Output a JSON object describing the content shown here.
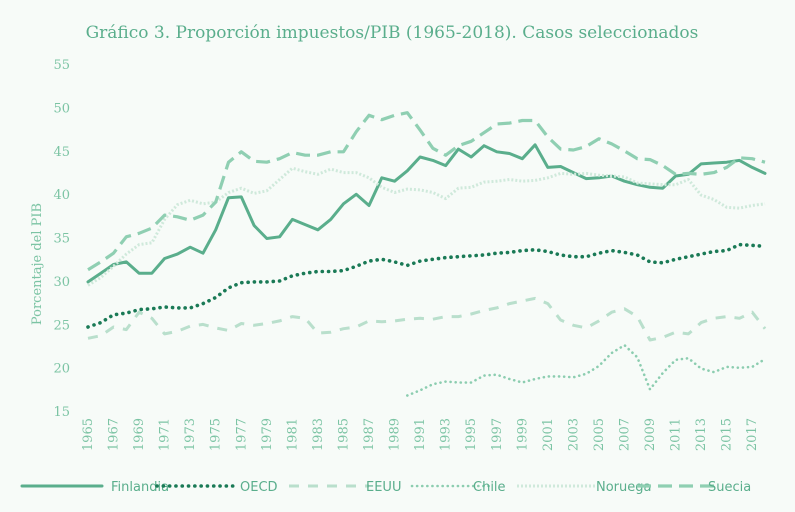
{
  "chart_data": {
    "type": "line",
    "title": "Gráfico 3. Proporción impuestos/PIB (1965-2018). Casos seleccionados",
    "ylabel": "Porcentaje del PIB",
    "xlabel": "",
    "ylim": [
      15,
      55
    ],
    "yticks": [
      "15",
      "20",
      "25",
      "30",
      "35",
      "40",
      "45",
      "50",
      "55"
    ],
    "xticks": [
      "1965",
      "1967",
      "1969",
      "1971",
      "1973",
      "1975",
      "1977",
      "1979",
      "1981",
      "1983",
      "1985",
      "1987",
      "1989",
      "1991",
      "1993",
      "1995",
      "1997",
      "1999",
      "2001",
      "2003",
      "2005",
      "2007",
      "2009",
      "2011",
      "2013",
      "2015",
      "2017"
    ],
    "x_start": 1965,
    "x_end": 2018,
    "legend_position": "bottom",
    "grid": false,
    "series": [
      {
        "name": "Finlandia",
        "color": "#5aae8c",
        "style": "solid",
        "x": [
          1965,
          1966,
          1967,
          1968,
          1969,
          1970,
          1971,
          1972,
          1973,
          1974,
          1975,
          1976,
          1977,
          1978,
          1979,
          1980,
          1981,
          1982,
          1983,
          1984,
          1985,
          1986,
          1987,
          1988,
          1989,
          1990,
          1991,
          1992,
          1993,
          1994,
          1995,
          1996,
          1997,
          1998,
          1999,
          2000,
          2001,
          2002,
          2003,
          2004,
          2005,
          2006,
          2007,
          2008,
          2009,
          2010,
          2011,
          2012,
          2013,
          2014,
          2015,
          2016,
          2017,
          2018
        ],
        "values": [
          30,
          31,
          32,
          32.3,
          31,
          31,
          32.7,
          33.2,
          34,
          33.3,
          36,
          39.7,
          39.8,
          36.5,
          35,
          35.2,
          37.2,
          36.6,
          36,
          37.2,
          39,
          40.1,
          38.8,
          42,
          41.6,
          42.8,
          44.4,
          44,
          43.4,
          45.3,
          44.4,
          45.7,
          45,
          44.8,
          44.2,
          45.8,
          43.2,
          43.3,
          42.6,
          41.9,
          42,
          42.2,
          41.6,
          41.2,
          40.9,
          40.8,
          42.2,
          42.4,
          43.6,
          43.7,
          43.8,
          44,
          43.2,
          42.5
        ]
      },
      {
        "name": "OECD",
        "color": "#1a7a56",
        "style": "dotted",
        "x": [
          1965,
          1966,
          1967,
          1968,
          1969,
          1970,
          1971,
          1972,
          1973,
          1974,
          1975,
          1976,
          1977,
          1978,
          1979,
          1980,
          1981,
          1982,
          1983,
          1984,
          1985,
          1986,
          1987,
          1988,
          1989,
          1990,
          1991,
          1992,
          1993,
          1994,
          1995,
          1996,
          1997,
          1998,
          1999,
          2000,
          2001,
          2002,
          2003,
          2004,
          2005,
          2006,
          2007,
          2008,
          2009,
          2010,
          2011,
          2012,
          2013,
          2014,
          2015,
          2016,
          2017,
          2018
        ],
        "values": [
          24.8,
          25.3,
          26.2,
          26.4,
          26.8,
          26.9,
          27.1,
          27,
          27,
          27.5,
          28.2,
          29.3,
          29.9,
          30,
          30,
          30.1,
          30.7,
          31,
          31.2,
          31.2,
          31.3,
          31.8,
          32.4,
          32.6,
          32.3,
          31.9,
          32.4,
          32.6,
          32.8,
          32.9,
          33,
          33.1,
          33.3,
          33.4,
          33.6,
          33.7,
          33.5,
          33.1,
          32.9,
          32.9,
          33.3,
          33.6,
          33.4,
          33.1,
          32.3,
          32.2,
          32.6,
          32.9,
          33.2,
          33.5,
          33.6,
          34.3,
          34.2,
          34.1
        ]
      },
      {
        "name": "EEUU",
        "color": "#b9dfcc",
        "style": "dash",
        "x": [
          1965,
          1966,
          1967,
          1968,
          1969,
          1970,
          1971,
          1972,
          1973,
          1974,
          1975,
          1976,
          1977,
          1978,
          1979,
          1980,
          1981,
          1982,
          1983,
          1984,
          1985,
          1986,
          1987,
          1988,
          1989,
          1990,
          1991,
          1992,
          1993,
          1994,
          1995,
          1996,
          1997,
          1998,
          1999,
          2000,
          2001,
          2002,
          2003,
          2004,
          2005,
          2006,
          2007,
          2008,
          2009,
          2010,
          2011,
          2012,
          2013,
          2014,
          2015,
          2016,
          2017,
          2018
        ],
        "values": [
          23.5,
          23.8,
          24.8,
          24.5,
          26.5,
          25.8,
          24,
          24.3,
          24.9,
          25.1,
          24.7,
          24.4,
          25.2,
          25,
          25.2,
          25.5,
          26,
          25.8,
          24.1,
          24.2,
          24.6,
          24.8,
          25.5,
          25.4,
          25.5,
          25.7,
          25.8,
          25.7,
          26,
          26,
          26.3,
          26.7,
          27,
          27.5,
          27.8,
          28.1,
          27.5,
          25.6,
          25,
          24.7,
          25.5,
          26.5,
          26.9,
          26,
          23.3,
          23.6,
          24.2,
          24,
          25.3,
          25.8,
          26,
          25.8,
          26.5,
          24.6
        ]
      },
      {
        "name": "Chile",
        "color": "#8ccdb0",
        "style": "smalldot",
        "x": [
          1990,
          1991,
          1992,
          1993,
          1994,
          1995,
          1996,
          1997,
          1998,
          1999,
          2000,
          2001,
          2002,
          2003,
          2004,
          2005,
          2006,
          2007,
          2008,
          2009,
          2010,
          2011,
          2012,
          2013,
          2014,
          2015,
          2016,
          2017,
          2018
        ],
        "values": [
          16.9,
          17.5,
          18.2,
          18.5,
          18.4,
          18.4,
          19.2,
          19.3,
          18.8,
          18.4,
          18.8,
          19.1,
          19.1,
          19,
          19.4,
          20.3,
          21.8,
          22.7,
          21.3,
          17.6,
          19.5,
          21,
          21.2,
          20,
          19.6,
          20.2,
          20.1,
          20.2,
          21.1
        ]
      },
      {
        "name": "Noruega",
        "color": "#cfe9db",
        "style": "dense",
        "x": [
          1965,
          1966,
          1967,
          1968,
          1969,
          1970,
          1971,
          1972,
          1973,
          1974,
          1975,
          1976,
          1977,
          1978,
          1979,
          1980,
          1981,
          1982,
          1983,
          1984,
          1985,
          1986,
          1987,
          1988,
          1989,
          1990,
          1991,
          1992,
          1993,
          1994,
          1995,
          1996,
          1997,
          1998,
          1999,
          2000,
          2001,
          2002,
          2003,
          2004,
          2005,
          2006,
          2007,
          2008,
          2009,
          2010,
          2011,
          2012,
          2013,
          2014,
          2015,
          2016,
          2017,
          2018
        ],
        "values": [
          29.6,
          30.5,
          31.8,
          33.2,
          34.3,
          34.5,
          37.2,
          38.9,
          39.4,
          39,
          39.2,
          40.3,
          40.8,
          40.2,
          40.5,
          41.8,
          43.1,
          42.7,
          42.4,
          43,
          42.6,
          42.6,
          42,
          40.9,
          40.3,
          40.7,
          40.6,
          40.3,
          39.6,
          40.8,
          40.9,
          41.5,
          41.6,
          41.8,
          41.6,
          41.7,
          42,
          42.5,
          42.4,
          42.5,
          42.3,
          42.2,
          42.1,
          41.4,
          41.3,
          41.2,
          41.2,
          41.8,
          40,
          39.5,
          38.6,
          38.5,
          38.8,
          39
        ]
      },
      {
        "name": "Suecia",
        "color": "#8fcfb2",
        "style": "longdash",
        "x": [
          1965,
          1966,
          1967,
          1968,
          1969,
          1970,
          1971,
          1972,
          1973,
          1974,
          1975,
          1976,
          1977,
          1978,
          1979,
          1980,
          1981,
          1982,
          1983,
          1984,
          1985,
          1986,
          1987,
          1988,
          1989,
          1990,
          1991,
          1992,
          1993,
          1994,
          1995,
          1996,
          1997,
          1998,
          1999,
          2000,
          2001,
          2002,
          2003,
          2004,
          2005,
          2006,
          2007,
          2008,
          2009,
          2010,
          2011,
          2012,
          2013,
          2014,
          2015,
          2016,
          2017,
          2018
        ],
        "values": [
          31.4,
          32.3,
          33.3,
          35.2,
          35.6,
          36.2,
          37.7,
          37.5,
          37.1,
          37.7,
          39.2,
          43.8,
          45,
          43.9,
          43.8,
          44.2,
          44.9,
          44.6,
          44.6,
          45,
          45,
          47.3,
          49.2,
          48.7,
          49.2,
          49.5,
          47.5,
          45.4,
          44.6,
          45.7,
          46.2,
          47.2,
          48.2,
          48.3,
          48.6,
          48.6,
          46.7,
          45.3,
          45.2,
          45.6,
          46.5,
          45.9,
          45.1,
          44.2,
          44.1,
          43.4,
          42.4,
          42.5,
          42.4,
          42.6,
          43.2,
          44.3,
          44.2,
          43.8
        ]
      }
    ]
  }
}
